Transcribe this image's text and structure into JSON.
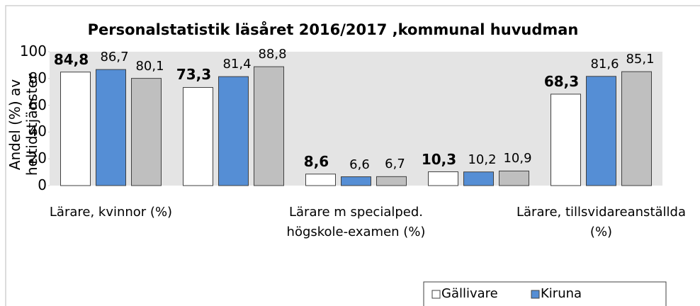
{
  "chart_data": {
    "type": "bar",
    "title": "Personalstatistik läsåret 2016/2017 ,kommunal huvudman",
    "y_label": "Andel (%) av heltidstjänster",
    "categories": [
      "Lärare, kvinnor (%)",
      null,
      "Lärare m specialped. högskole-examen (%)",
      null,
      "Lärare, tillsvidareanställda (%)"
    ],
    "series": [
      {
        "name": "Gällivare",
        "color": "#ffffff",
        "values": [
          84.8,
          73.3,
          8.6,
          10.3,
          68.3
        ],
        "value_labels": [
          "84,8",
          "73,3",
          "8,6",
          "10,3",
          "68,3"
        ]
      },
      {
        "name": "Kiruna",
        "color": "#558ed5",
        "values": [
          86.7,
          81.4,
          6.6,
          10.2,
          81.6
        ],
        "value_labels": [
          "86,7",
          "81,4",
          "6,6",
          "10,2",
          "81,6"
        ]
      },
      {
        "color": "#bfbfbf",
        "values": [
          80.1,
          88.8,
          6.7,
          10.9,
          85.1
        ],
        "value_labels": [
          "80,1",
          "88,8",
          "6,7",
          "10,9",
          "85,1"
        ]
      }
    ],
    "ylim": [
      0,
      100
    ],
    "yticks": [
      0,
      20,
      40,
      60,
      80,
      100
    ],
    "plot_background": "#e4e4e4",
    "legend": "bottom-right"
  }
}
